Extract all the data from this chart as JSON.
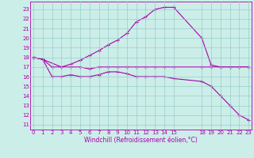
{
  "xlabel": "Windchill (Refroidissement éolien,°C)",
  "background_color": "#cceee8",
  "line_color": "#aa00aa",
  "grid_color": "#99cccc",
  "curve_top_x": [
    0,
    1,
    3,
    4,
    5,
    6,
    7,
    8,
    9,
    10,
    11,
    12,
    13,
    14,
    15,
    18,
    19,
    20,
    21,
    22,
    23
  ],
  "curve_top_y": [
    18.0,
    17.8,
    17.0,
    17.3,
    17.7,
    18.2,
    18.7,
    19.3,
    19.8,
    20.5,
    21.7,
    22.2,
    23.0,
    23.2,
    23.2,
    20.0,
    17.2,
    17.0,
    17.0,
    17.0,
    17.0
  ],
  "curve_mid_x": [
    0,
    1,
    2,
    3,
    4,
    5,
    6,
    7,
    8,
    9,
    10,
    11,
    12,
    13,
    14,
    15,
    18,
    19,
    20,
    21,
    22,
    23
  ],
  "curve_mid_y": [
    18.0,
    17.8,
    17.0,
    17.0,
    17.0,
    17.0,
    16.8,
    17.0,
    17.0,
    17.0,
    17.0,
    17.0,
    17.0,
    17.0,
    17.0,
    17.0,
    17.0,
    17.0,
    17.0,
    17.0,
    17.0,
    17.0
  ],
  "curve_bot_x": [
    0,
    1,
    2,
    3,
    4,
    5,
    6,
    7,
    8,
    9,
    10,
    11,
    12,
    13,
    14,
    15,
    18,
    19,
    20,
    21,
    22,
    23
  ],
  "curve_bot_y": [
    18.0,
    17.8,
    16.0,
    16.0,
    16.2,
    16.0,
    16.0,
    16.2,
    16.5,
    16.5,
    16.3,
    16.0,
    16.0,
    16.0,
    16.0,
    15.8,
    15.5,
    15.0,
    14.0,
    13.0,
    12.0,
    11.5
  ],
  "xlim": [
    -0.3,
    23.3
  ],
  "ylim": [
    10.5,
    23.8
  ],
  "yticks": [
    11,
    12,
    13,
    14,
    15,
    16,
    17,
    18,
    19,
    20,
    21,
    22,
    23
  ],
  "xticks": [
    0,
    1,
    2,
    3,
    4,
    5,
    6,
    7,
    8,
    9,
    10,
    11,
    12,
    13,
    14,
    15,
    18,
    19,
    20,
    21,
    22,
    23
  ],
  "tick_fontsize": 5,
  "xlabel_fontsize": 5.5
}
